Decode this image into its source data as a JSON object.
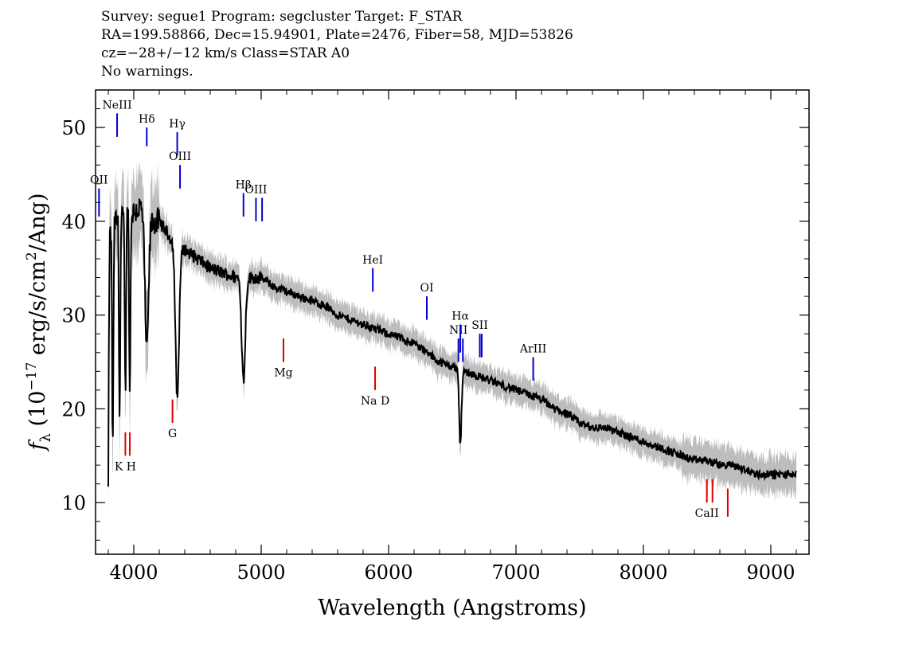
{
  "header": {
    "line1": "Survey: segue1 Program: segcluster Target: F_STAR",
    "line2": "RA=199.58866, Dec=15.94901, Plate=2476, Fiber=58, MJD=53826",
    "line3": "cz=−28+/−12 km/s Class=STAR A0",
    "line4": "No warnings."
  },
  "chart_data": {
    "type": "line",
    "xlabel": "Wavelength (Angstroms)",
    "ylabel": "f_λ (10^-17 erg/s/cm^2/Ang)",
    "xlim": [
      3700,
      9300
    ],
    "ylim": [
      4.5,
      54
    ],
    "x_ticks": [
      4000,
      5000,
      6000,
      7000,
      8000,
      9000
    ],
    "y_ticks": [
      10,
      20,
      30,
      40,
      50
    ],
    "colors": {
      "spectrum": "#000000",
      "noise": "#bdbdbd",
      "emission": "#0000cc",
      "absorption": "#dd0000"
    },
    "series": [
      {
        "x": [
          3800,
          3850,
          3900,
          3950,
          4000,
          4050,
          4100,
          4150,
          4200,
          4250,
          4300,
          4350,
          4400,
          4500,
          4600,
          4700,
          4800,
          4900,
          5000,
          5100,
          5200,
          5300,
          5400,
          5500,
          5600,
          5700,
          5800,
          5900,
          6000,
          6100,
          6200,
          6300,
          6400,
          6500,
          6600,
          6700,
          6800,
          6900,
          7000,
          7100,
          7200,
          7300,
          7400,
          7500,
          7600,
          7700,
          7800,
          7900,
          8000,
          8100,
          8200,
          8300,
          8400,
          8500,
          8600,
          8700,
          8800,
          8900,
          9000,
          9100,
          9200
        ],
        "y": [
          38,
          40,
          40,
          41,
          41,
          41.5,
          40.5,
          40,
          40,
          39,
          38,
          37,
          37,
          36,
          35,
          34.5,
          34,
          34,
          34,
          33,
          32.5,
          32,
          31.5,
          31,
          30,
          29.5,
          29,
          28.5,
          28,
          27.5,
          27,
          26,
          25,
          24.5,
          24,
          23.5,
          23,
          22.5,
          22,
          21.5,
          21,
          20,
          19.5,
          18.5,
          18,
          18,
          17.5,
          17,
          16.5,
          16,
          15.5,
          15,
          14.5,
          14.5,
          14,
          14,
          13.5,
          13,
          13,
          13,
          13
        ]
      }
    ],
    "absorption_features": [
      {
        "x": 3934,
        "depth": 19
      },
      {
        "x": 3969,
        "depth": 20
      },
      {
        "x": 3889,
        "depth": 21
      },
      {
        "x": 3835,
        "depth": 24
      },
      {
        "x": 3798,
        "depth": 29
      },
      {
        "x": 4102,
        "depth": 14
      },
      {
        "x": 4341,
        "depth": 16
      },
      {
        "x": 4861,
        "depth": 11
      },
      {
        "x": 6563,
        "depth": 8
      }
    ],
    "emission_lines": [
      {
        "label": "NeIII",
        "x": 3869,
        "y_top": 51.5,
        "y_bot": 49
      },
      {
        "label": "Hδ",
        "x": 4102,
        "y_top": 50,
        "y_bot": 48
      },
      {
        "label": "Hγ",
        "x": 4341,
        "y_top": 49.5,
        "y_bot": 47
      },
      {
        "label": "OIII",
        "x": 4363,
        "y_top": 46,
        "y_bot": 43.5
      },
      {
        "label": "OII",
        "x": 3727,
        "y_top": 43.5,
        "y_bot": 40.5
      },
      {
        "label": "Hβ",
        "x": 4861,
        "y_top": 43,
        "y_bot": 40.5
      },
      {
        "label": "OIII",
        "x": 4959,
        "y_top": 42.5,
        "y_bot": 40
      },
      {
        "label": "",
        "x": 5007,
        "y_top": 42.5,
        "y_bot": 40
      },
      {
        "label": "HeI",
        "x": 5876,
        "y_top": 35,
        "y_bot": 32.5
      },
      {
        "label": "OI",
        "x": 6300,
        "y_top": 32,
        "y_bot": 29.5
      },
      {
        "label": "NII",
        "x": 6548,
        "y_top": 27.5,
        "y_bot": 25
      },
      {
        "label": "Hα",
        "x": 6563,
        "y_top": 29,
        "y_bot": 26
      },
      {
        "label": "",
        "x": 6583,
        "y_top": 27.5,
        "y_bot": 25
      },
      {
        "label": "SII",
        "x": 6716,
        "y_top": 28,
        "y_bot": 25.5
      },
      {
        "label": "",
        "x": 6731,
        "y_top": 28,
        "y_bot": 25.5
      },
      {
        "label": "ArIII",
        "x": 7135,
        "y_top": 25.5,
        "y_bot": 23
      }
    ],
    "absorption_lines": [
      {
        "label": "K H",
        "x": 3934,
        "y_top": 17.5,
        "y_bot": 15
      },
      {
        "label": "",
        "x": 3969,
        "y_top": 17.5,
        "y_bot": 15
      },
      {
        "label": "G",
        "x": 4304,
        "y_top": 21,
        "y_bot": 18.5
      },
      {
        "label": "Mg",
        "x": 5175,
        "y_top": 27.5,
        "y_bot": 25
      },
      {
        "label": "Na D",
        "x": 5894,
        "y_top": 24.5,
        "y_bot": 22
      },
      {
        "label": "CaII",
        "x": 8498,
        "y_top": 12.5,
        "y_bot": 10
      },
      {
        "label": "",
        "x": 8542,
        "y_top": 12.5,
        "y_bot": 10
      },
      {
        "label": "",
        "x": 8662,
        "y_top": 11.5,
        "y_bot": 8.5
      }
    ]
  }
}
